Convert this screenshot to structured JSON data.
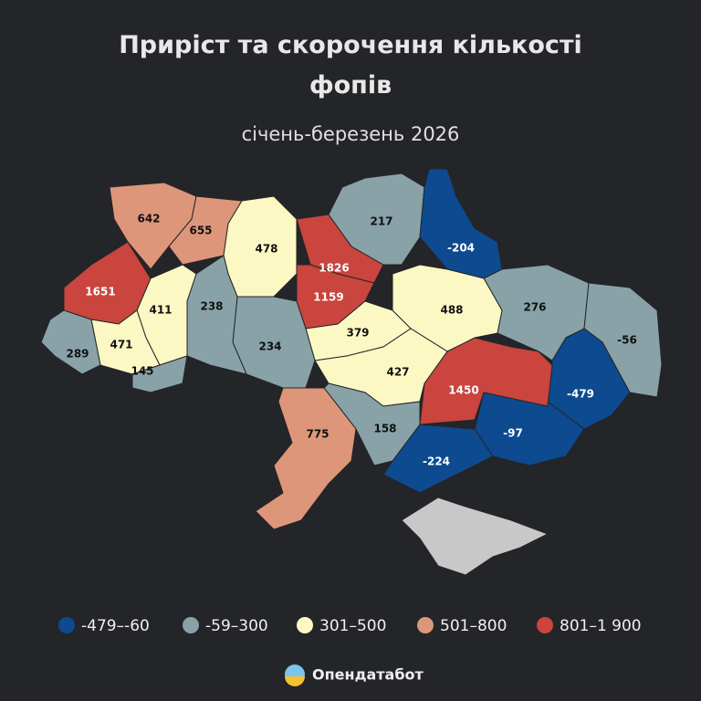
{
  "title_lines": [
    "Приріст та скорочення кількості",
    "фопів"
  ],
  "subtitle": "січень-березень 2026",
  "regions": [
    {
      "value": 642,
      "color": "#de967a"
    },
    {
      "value": 655,
      "color": "#de967a"
    },
    {
      "value": 478,
      "color": "#fcf8c4"
    },
    {
      "value": 1826,
      "color": "#c9453e"
    },
    {
      "value": 1159,
      "color": "#c9453e"
    },
    {
      "value": 217,
      "color": "#88a2a8"
    },
    {
      "value": -204,
      "color": "#0d4a8f"
    },
    {
      "value": 276,
      "color": "#88a2a8"
    },
    {
      "value": -56,
      "color": "#88a2a8"
    },
    {
      "value": -479,
      "color": "#0d4a8f"
    },
    {
      "value": -97,
      "color": "#0d4a8f"
    },
    {
      "value": -224,
      "color": "#0d4a8f"
    },
    {
      "value": 1450,
      "color": "#c9453e"
    },
    {
      "value": 488,
      "color": "#fcf8c4"
    },
    {
      "value": 379,
      "color": "#fcf8c4"
    },
    {
      "value": 427,
      "color": "#fcf8c4"
    },
    {
      "value": 158,
      "color": "#88a2a8"
    },
    {
      "value": 775,
      "color": "#de967a"
    },
    {
      "value": 234,
      "color": "#88a2a8"
    },
    {
      "value": 238,
      "color": "#88a2a8"
    },
    {
      "value": 411,
      "color": "#fcf8c4"
    },
    {
      "value": 1651,
      "color": "#c9453e"
    },
    {
      "value": 471,
      "color": "#fcf8c4"
    },
    {
      "value": 289,
      "color": "#88a2a8"
    },
    {
      "value": 145,
      "color": "#88a2a8"
    }
  ],
  "legend": [
    {
      "label": "-479–-60",
      "color": "#0d4a8f"
    },
    {
      "label": "-59–300",
      "color": "#88a2a8"
    },
    {
      "label": "301–500",
      "color": "#fcf8c4"
    },
    {
      "label": "501–800",
      "color": "#de967a"
    },
    {
      "label": "801–1 900",
      "color": "#c9453e"
    }
  ],
  "brand": "Опендатабот"
}
